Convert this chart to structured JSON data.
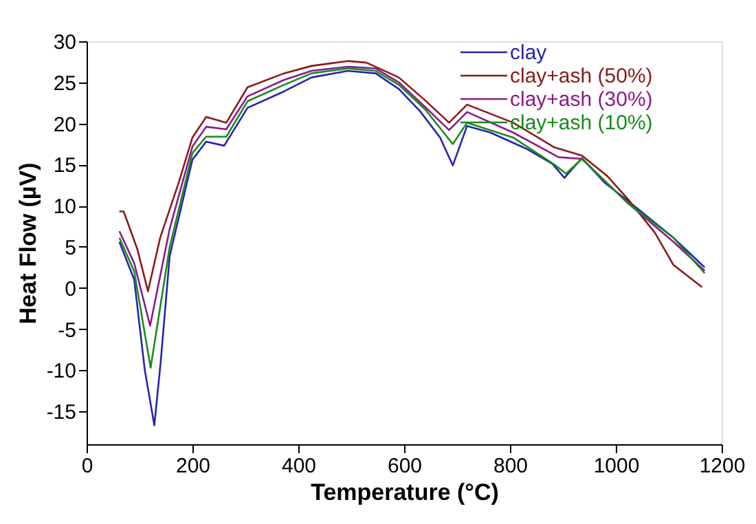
{
  "chart_data": {
    "type": "line",
    "xlabel": "Temperature (°C)",
    "ylabel": "Heat Flow (µV)",
    "xlim": [
      0,
      1200
    ],
    "xticks": [
      0,
      200,
      400,
      600,
      800,
      1000,
      1200
    ],
    "ylim": [
      -19,
      30
    ],
    "yticks": [
      -15,
      -10,
      -5,
      0,
      5,
      10,
      15,
      20,
      25,
      30
    ],
    "grid": false,
    "legend": "top right",
    "marker": "none",
    "line_style": "solid",
    "series": [
      {
        "name": "clay",
        "color": "#2424b0",
        "x": [
          62,
          90,
          110,
          128,
          140,
          157,
          200,
          226,
          260,
          304,
          373,
          425,
          494,
          546,
          590,
          630,
          668,
          692,
          719,
          763,
          832,
          880,
          903,
          936,
          979,
          1023,
          1109,
          1168
        ],
        "values": [
          5.6,
          1.0,
          -10.0,
          -16.7,
          -9.0,
          3.9,
          15.6,
          17.8,
          17.3,
          21.9,
          23.9,
          25.6,
          26.4,
          26.1,
          24.2,
          21.5,
          18.3,
          14.9,
          19.7,
          18.9,
          16.9,
          15.1,
          13.4,
          15.8,
          12.8,
          10.6,
          6.1,
          2.5
        ]
      },
      {
        "name": "clay+ash (50%)",
        "color": "#8b1a1a",
        "x": [
          62,
          70,
          96,
          116,
          139,
          174,
          200,
          226,
          264,
          304,
          373,
          425,
          494,
          529,
          590,
          640,
          685,
          719,
          806,
          884,
          936,
          984,
          1023,
          1074,
          1109,
          1163
        ],
        "values": [
          9.3,
          9.3,
          4.7,
          -0.4,
          6.1,
          12.8,
          18.3,
          20.8,
          20.1,
          24.4,
          26.1,
          27.0,
          27.6,
          27.4,
          25.6,
          22.8,
          20.1,
          22.3,
          20.1,
          17.1,
          16.1,
          13.6,
          10.8,
          6.7,
          2.8,
          0.1
        ]
      },
      {
        "name": "clay+ash (30%)",
        "color": "#8b1a8b",
        "x": [
          62,
          90,
          120,
          157,
          200,
          226,
          264,
          304,
          373,
          425,
          494,
          546,
          590,
          640,
          685,
          719,
          806,
          892,
          936,
          1023,
          1109,
          1168
        ],
        "values": [
          6.9,
          3.0,
          -4.6,
          7.2,
          17.2,
          19.6,
          19.3,
          23.3,
          25.3,
          26.4,
          26.9,
          26.7,
          25.0,
          22.0,
          19.2,
          21.4,
          18.9,
          15.9,
          15.7,
          10.3,
          5.6,
          2.1
        ]
      },
      {
        "name": "clay+ash (10%)",
        "color": "#1a8b1a",
        "x": [
          62,
          90,
          121,
          157,
          200,
          226,
          264,
          304,
          373,
          425,
          494,
          546,
          590,
          640,
          692,
          719,
          806,
          884,
          906,
          936,
          1023,
          1109,
          1168
        ],
        "values": [
          6.1,
          2.0,
          -9.7,
          5.0,
          16.4,
          18.4,
          18.4,
          22.7,
          24.7,
          26.1,
          26.7,
          26.4,
          24.7,
          21.7,
          17.5,
          20.1,
          18.3,
          15.0,
          13.9,
          15.7,
          10.3,
          6.1,
          1.8
        ]
      }
    ]
  }
}
